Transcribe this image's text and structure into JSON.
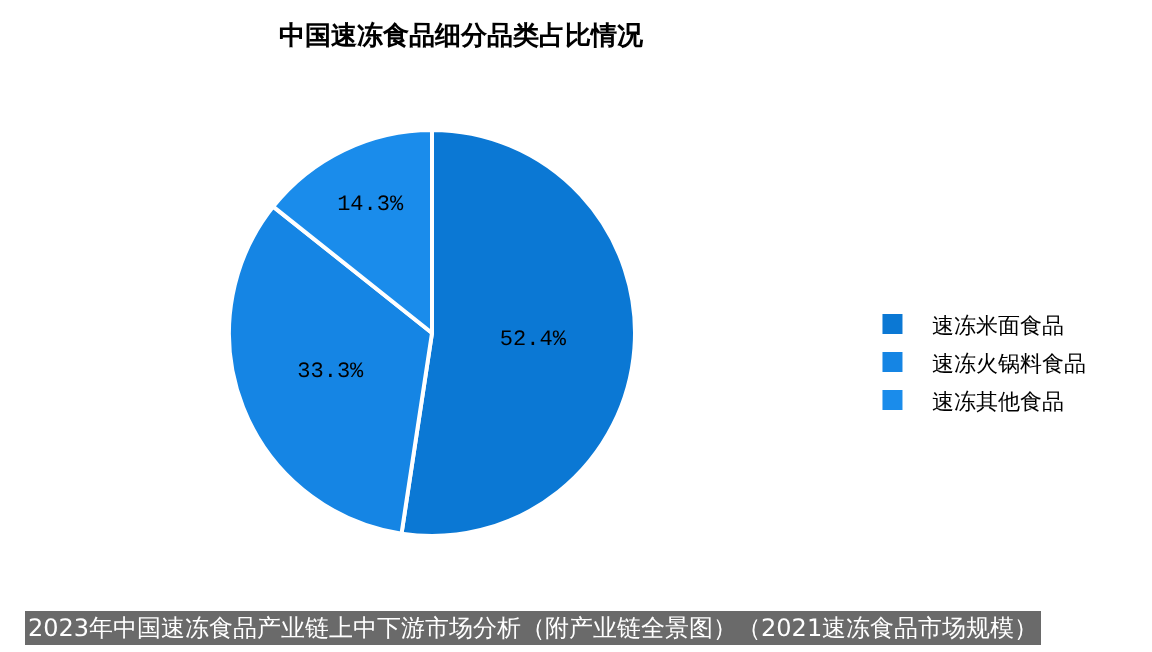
{
  "chart_data": {
    "type": "pie",
    "title": "中国速冻食品细分品类占比情况",
    "categories": [
      "速冻米面食品",
      "速冻火锅料食品",
      "速冻其他食品"
    ],
    "values": [
      52.4,
      33.3,
      14.3
    ],
    "colors": [
      "#0b78d4",
      "#1585e4",
      "#1a8ceb"
    ],
    "value_labels": [
      "52.4%",
      "33.3%",
      "14.3%"
    ],
    "legend": "right",
    "annotations": [
      "2023年中国速冻食品产业链上中下游市场分析（附产业链全景图）（2021速冻食品市场规模）"
    ]
  }
}
